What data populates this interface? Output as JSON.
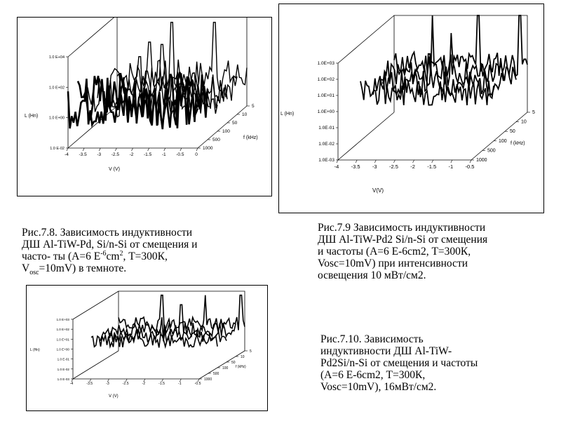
{
  "chart_data": [
    {
      "id": "fig78",
      "type": "3d-waterfall",
      "xlabel": "V (V)",
      "ylabel": "L (Hn)",
      "zlabel": "f (kHz)",
      "x_ticks": [
        "-4",
        "-3.5",
        "-3",
        "-2.5",
        "-2",
        "-1.5",
        "-1",
        "-0.5",
        "0"
      ],
      "y_ticks": [
        "1.0 E-02",
        "1.0 E+00",
        "1.0 E+02",
        "1.0 E+04"
      ],
      "z_ticks": [
        "5",
        "10",
        "50",
        "100",
        "500",
        "1000"
      ],
      "series": [
        {
          "name": "5",
          "peaks_V": [
            -3.0,
            -2.3,
            -1.0
          ],
          "peak_log_L": [
            2.2,
            3.5,
            3.5
          ]
        },
        {
          "name": "10",
          "peaks_V": [
            -3.0,
            -2.3
          ],
          "peak_log_L": [
            1.8,
            2.6
          ]
        },
        {
          "name": "50",
          "peaks_V": [
            -3.2,
            -2.5
          ],
          "peak_log_L": [
            1.0,
            1.4
          ]
        },
        {
          "name": "100",
          "peaks_V": [
            -3.5,
            -2.8
          ],
          "peak_log_L": [
            0.6,
            0.8
          ]
        },
        {
          "name": "500",
          "peaks_V": [],
          "peak_log_L": []
        },
        {
          "name": "1000",
          "peaks_V": [],
          "peak_log_L": []
        }
      ]
    },
    {
      "id": "fig79",
      "type": "3d-waterfall",
      "xlabel": "V(V)",
      "ylabel": "L (Hn)",
      "zlabel": "f (kHz)",
      "x_ticks": [
        "-4",
        "-3.5",
        "-3",
        "-2.5",
        "-2",
        "-1.5",
        "-1",
        "-0.5"
      ],
      "y_ticks": [
        "1.0E-03",
        "1.0E-02",
        "1.0E-01",
        "1.0E+00",
        "1.0E+01",
        "1.0E+02",
        "1.0E+03"
      ],
      "z_ticks": [
        "5",
        "10",
        "50",
        "100",
        "500",
        "1000"
      ],
      "series": [
        {
          "name": "5",
          "peaks_V": [
            -3.0,
            -1.8,
            -0.7
          ],
          "peak_log_L": [
            3.0,
            3.0,
            3.0
          ]
        },
        {
          "name": "10",
          "peaks_V": [
            -2.2
          ],
          "peak_log_L": [
            2.5
          ]
        },
        {
          "name": "50",
          "peaks_V": [
            -2.5
          ],
          "peak_log_L": [
            1.8
          ]
        },
        {
          "name": "100",
          "peaks_V": [
            -2.8
          ],
          "peak_log_L": [
            0.8
          ]
        }
      ]
    },
    {
      "id": "fig710",
      "type": "3d-waterfall",
      "xlabel": "V (V)",
      "ylabel": "L (Hn)",
      "zlabel": "f (kHz)",
      "x_ticks": [
        "-4",
        "-3.5",
        "-3",
        "-2.5",
        "-2",
        "-1.5",
        "-1",
        "-0.5"
      ],
      "y_ticks": [
        "1.0 E-03",
        "1.0 E-02",
        "1.0 E-01",
        "1.0 E+00",
        "1.0 E+01",
        "1.0 E+02",
        "1.0 E+03"
      ],
      "z_ticks": [
        "5",
        "10",
        "50",
        "100",
        "500",
        "1000"
      ],
      "series": [
        {
          "name": "5",
          "peaks_V": [
            -2.8,
            -1.6,
            -0.6
          ],
          "peak_log_L": [
            2.6,
            2.6,
            2.6
          ]
        },
        {
          "name": "10",
          "peaks_V": [
            -2.0
          ],
          "peak_log_L": [
            2.2
          ]
        },
        {
          "name": "50",
          "peaks_V": [
            -2.3
          ],
          "peak_log_L": [
            1.5
          ]
        },
        {
          "name": "100",
          "peaks_V": [
            -2.7
          ],
          "peak_log_L": [
            0.8
          ]
        }
      ]
    }
  ],
  "captions": {
    "fig78": {
      "l1": "Рис.7.8.  Зависимость индуктивности",
      "l2a": "ДШ  Al-TiW-Pd, Si/n-Si от смещения и",
      "l3a": "часто- ты (А=6 Е",
      "l3sup": "-6",
      "l3b": "cm",
      "l3sup2": "2",
      "l3c": ", Т=300К,",
      "l4a": "V",
      "l4sub": "osc",
      "l4b": "=10mV) в темноте."
    },
    "fig79": {
      "l1": "Рис.7.9 Зависимость индуктивности",
      "l2": "ДШ  Al-TiW-Pd2 Si/n-Si от смещения",
      "l3": "и частоты  (А=6 Е-6cm2, Т=300К,",
      "l4": "Vosc=10mV) при интенсивности",
      "l5": "освещения 10 мВт/см2."
    },
    "fig710": {
      "l1": "Рис.7.10. Зависимость",
      "l2": "индуктивности ДШ  Al-TiW-",
      "l3": "Pd2Si/n-Si от смещения и частоты",
      "l4": "(А=6 Е-6cm2, Т=300К,",
      "l5": "Vosc=10mV), 16мВт/см2."
    }
  }
}
